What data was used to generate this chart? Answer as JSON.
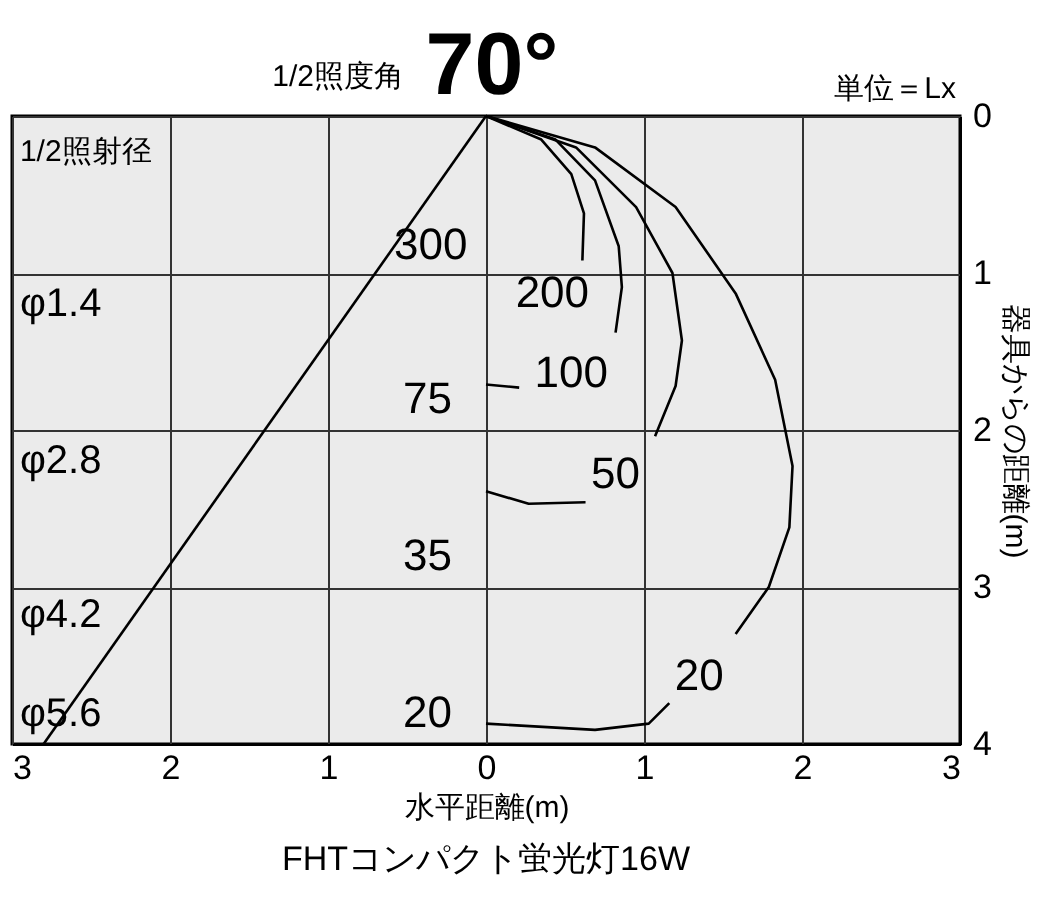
{
  "chart_data": {
    "type": "line",
    "title": "70°",
    "xlabel": "水平距離(m)",
    "ylabel": "器具からの距離(m)",
    "xlim": [
      -3,
      3
    ],
    "xticks": [
      {
        "value": -3,
        "label": "3"
      },
      {
        "value": -2,
        "label": "2"
      },
      {
        "value": -1,
        "label": "1"
      },
      0,
      1,
      2,
      3
    ],
    "ylim": [
      4,
      0
    ],
    "yticks": [
      0,
      1,
      2,
      3,
      4
    ],
    "grid": true,
    "legend": false,
    "marker": "none",
    "line_style": "solid",
    "series": [
      {
        "color": "#000000",
        "x": [
          0,
          -2.8
        ],
        "values": [
          0,
          4
        ]
      },
      {
        "color": "#000000",
        "x": [
          0,
          0.35,
          0.54,
          0.62,
          0.61
        ],
        "values": [
          0,
          0.15,
          0.37,
          0.62,
          0.92
        ]
      },
      {
        "color": "#000000",
        "x": [
          0,
          0.44,
          0.69,
          0.84,
          0.86,
          0.82,
          null,
          0.21,
          0
        ],
        "values": [
          0,
          0.15,
          0.41,
          0.83,
          1.09,
          1.38,
          null,
          1.73,
          1.71
        ]
      },
      {
        "color": "#000000",
        "x": [
          0,
          0.57,
          0.95,
          1.18,
          1.24,
          1.2,
          1.07,
          null,
          0.63,
          0.27,
          0
        ],
        "values": [
          0,
          0.2,
          0.58,
          1.0,
          1.43,
          1.72,
          2.04,
          null,
          2.46,
          2.47,
          2.39
        ]
      },
      {
        "color": "#000000",
        "x": [
          0,
          0.69,
          1.2,
          1.58,
          1.83,
          1.94,
          1.92,
          1.79,
          1.58,
          null,
          1.16,
          1.03,
          0.69,
          0
        ],
        "values": [
          0,
          0.2,
          0.58,
          1.13,
          1.68,
          2.23,
          2.62,
          3.0,
          3.3,
          null,
          3.74,
          3.87,
          3.91,
          3.87
        ]
      }
    ],
    "annotations": [
      "1/2照度角",
      "単位＝Lx",
      "FHTコンパクト蛍光灯16W",
      "1/2照射径",
      "300",
      "75",
      "35",
      "20",
      "φ1.4",
      "φ2.8",
      "φ4.2",
      "φ5.6",
      "200",
      "100",
      "50",
      "20"
    ]
  }
}
